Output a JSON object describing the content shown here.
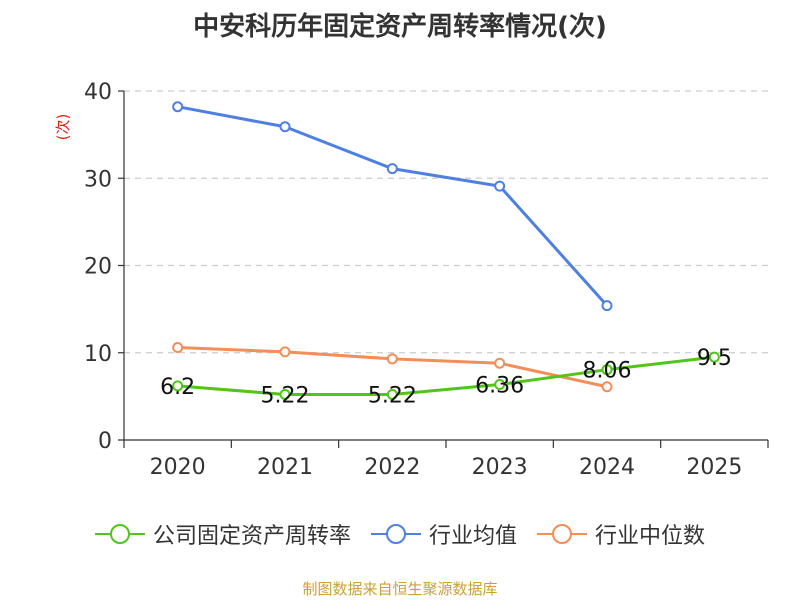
{
  "chart_data": {
    "type": "line",
    "title": "中安科历年固定资产周转率情况(次)",
    "ylabel": "(次)",
    "xlabel": "",
    "ylim": [
      0,
      40
    ],
    "yticks": [
      0,
      10,
      20,
      30,
      40
    ],
    "categories": [
      "2020",
      "2021",
      "2022",
      "2023",
      "2024",
      "2025"
    ],
    "series": [
      {
        "name": "公司固定资产周转率",
        "color": "#52c41a",
        "values": [
          6.2,
          5.22,
          5.22,
          6.36,
          8.06,
          9.5
        ],
        "labels": [
          "6.2",
          "5.22",
          "5.22",
          "6.36",
          "8.06",
          "9.5"
        ]
      },
      {
        "name": "行业均值",
        "color": "#4f7fdf",
        "values": [
          38.2,
          35.9,
          31.1,
          29.1,
          15.4,
          null
        ]
      },
      {
        "name": "行业中位数",
        "color": "#f28e5a",
        "values": [
          10.6,
          10.1,
          9.3,
          8.8,
          6.1,
          null
        ]
      }
    ],
    "grid": true,
    "legend_position": "bottom"
  },
  "source": "制图数据来自恒生聚源数据库"
}
